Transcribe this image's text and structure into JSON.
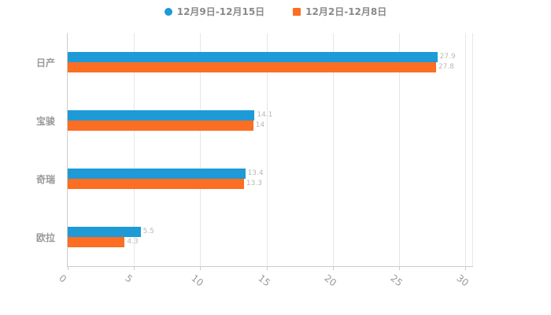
{
  "chart_data": {
    "type": "bar",
    "orientation": "horizontal",
    "title": "",
    "categories": [
      "日产",
      "宝骏",
      "奇瑞",
      "欧拉"
    ],
    "series": [
      {
        "name": "12月9日-12月15日",
        "color": "#1E9AD7",
        "marker": "circle",
        "values": [
          27.9,
          14.1,
          13.4,
          5.5
        ]
      },
      {
        "name": "12月2日-12月8日",
        "color": "#FB6E23",
        "marker": "square",
        "values": [
          27.8,
          14.0,
          13.3,
          4.3
        ]
      }
    ],
    "xlim": [
      0,
      30
    ],
    "xticks": [
      0,
      5,
      10,
      15,
      20,
      25,
      30
    ],
    "grid": true,
    "legend_position": "top-center",
    "axis_color": "#cccccc",
    "grid_color": "#e6e6e6",
    "label_color": "#999999"
  }
}
